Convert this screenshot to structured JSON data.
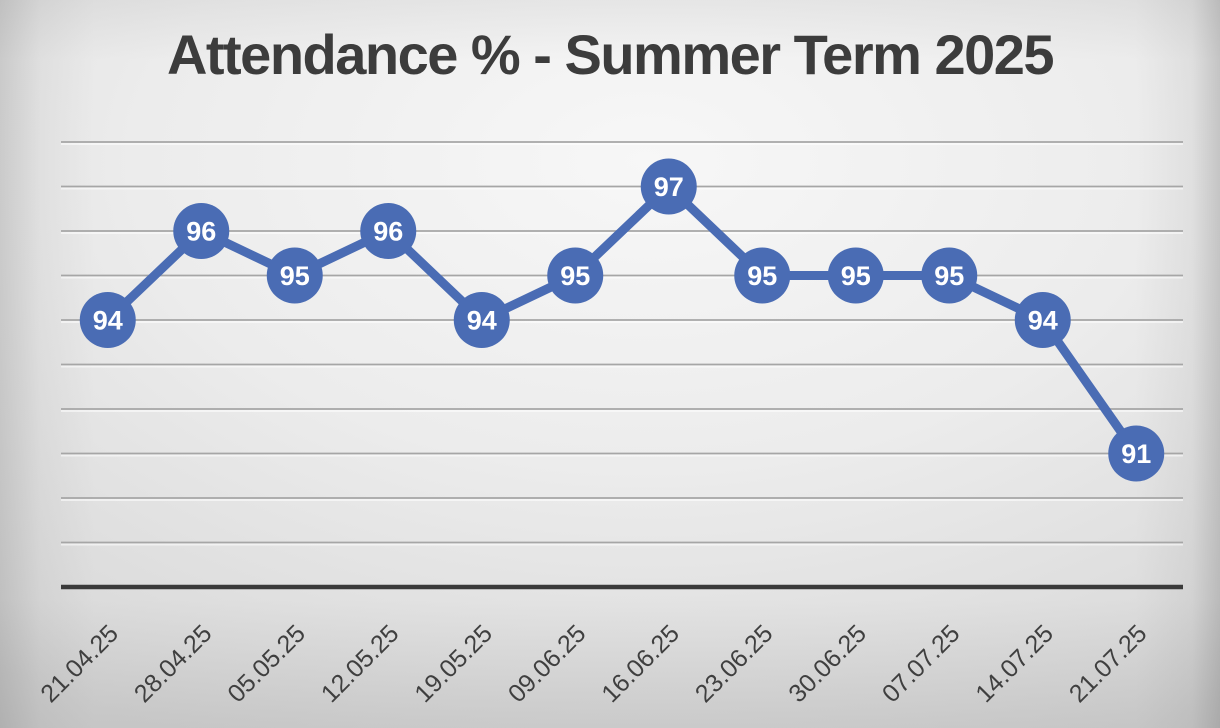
{
  "chart_data": {
    "type": "line",
    "title": "Attendance % - Summer Term 2025",
    "categories": [
      "21.04.25",
      "28.04.25",
      "05.05.25",
      "12.05.25",
      "19.05.25",
      "09.06.25",
      "16.06.25",
      "23.06.25",
      "30.06.25",
      "07.07.25",
      "14.07.25",
      "21.07.25"
    ],
    "values": [
      94,
      96,
      95,
      96,
      94,
      95,
      97,
      95,
      95,
      95,
      94,
      91
    ],
    "ylabel": "",
    "xlabel": "",
    "ylim": [
      88,
      98
    ],
    "gridline_step": 1,
    "grid": "horizontal-only",
    "y_tick_labels": "none",
    "legend": "none",
    "data_labels": "inside-marker",
    "marker_shape": "circle",
    "x_tick_rotation_deg": -45,
    "colors": {
      "line": "#4a6cb4",
      "marker": "#4a6cb4",
      "data_label_text": "#ffffff",
      "title_text": "#3c3c3c",
      "tick_text": "#3f3f3f",
      "axis_line": "#3a3a3a",
      "gridline": "#a6a6a6"
    }
  }
}
